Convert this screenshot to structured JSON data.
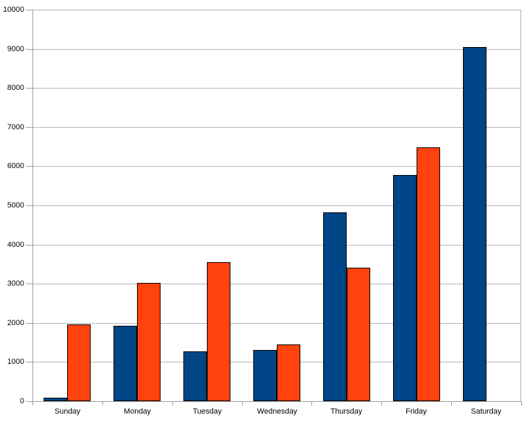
{
  "chart_data": {
    "type": "bar",
    "title": "",
    "xlabel": "",
    "ylabel": "",
    "categories": [
      "Sunday",
      "Monday",
      "Tuesday",
      "Wednesday",
      "Thursday",
      "Friday",
      "Saturday"
    ],
    "series": [
      {
        "name": "series-1-blue",
        "color": "#004586",
        "values": [
          90,
          1930,
          1280,
          1300,
          4830,
          5770,
          9050
        ]
      },
      {
        "name": "series-2-orange",
        "color": "#FF420E",
        "values": [
          1960,
          3030,
          3550,
          1440,
          3410,
          6480,
          null
        ]
      }
    ],
    "ylim": [
      0,
      10000
    ],
    "y_tick_step": 1000,
    "y_tick_labels": [
      "0",
      "1000",
      "2000",
      "3000",
      "4000",
      "5000",
      "6000",
      "7000",
      "8000",
      "9000",
      "10000"
    ],
    "grid": true,
    "legend": "none",
    "style": {
      "background": "#ffffff",
      "gridline_color": "#b3b3b3",
      "axis_color": "#999999",
      "bar_border_color": "#000000",
      "text_color": "#000000"
    }
  }
}
